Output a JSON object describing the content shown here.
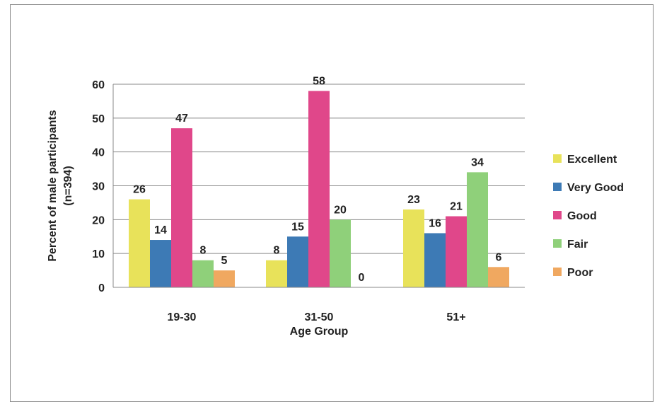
{
  "chart_data": {
    "type": "bar",
    "title": "",
    "xlabel": "Age Group",
    "ylabel": "Percent of male participants (n=394)",
    "ylabel_lines": [
      "Percent of male participants",
      "(n=394)"
    ],
    "ylim": [
      0,
      60
    ],
    "yticks": [
      0,
      10,
      20,
      30,
      40,
      50,
      60
    ],
    "grid": true,
    "legend_position": "right",
    "categories": [
      "19-30",
      "31-50",
      "51+"
    ],
    "series": [
      {
        "name": "Excellent",
        "color": "#e8e25a",
        "values": [
          26,
          8,
          23
        ]
      },
      {
        "name": "Very Good",
        "color": "#3d7ab5",
        "values": [
          14,
          15,
          16
        ]
      },
      {
        "name": "Good",
        "color": "#e0478a",
        "values": [
          47,
          58,
          21
        ]
      },
      {
        "name": "Fair",
        "color": "#8fd07a",
        "values": [
          8,
          20,
          34
        ]
      },
      {
        "name": "Poor",
        "color": "#f0a860",
        "values": [
          5,
          0,
          6
        ]
      }
    ]
  }
}
